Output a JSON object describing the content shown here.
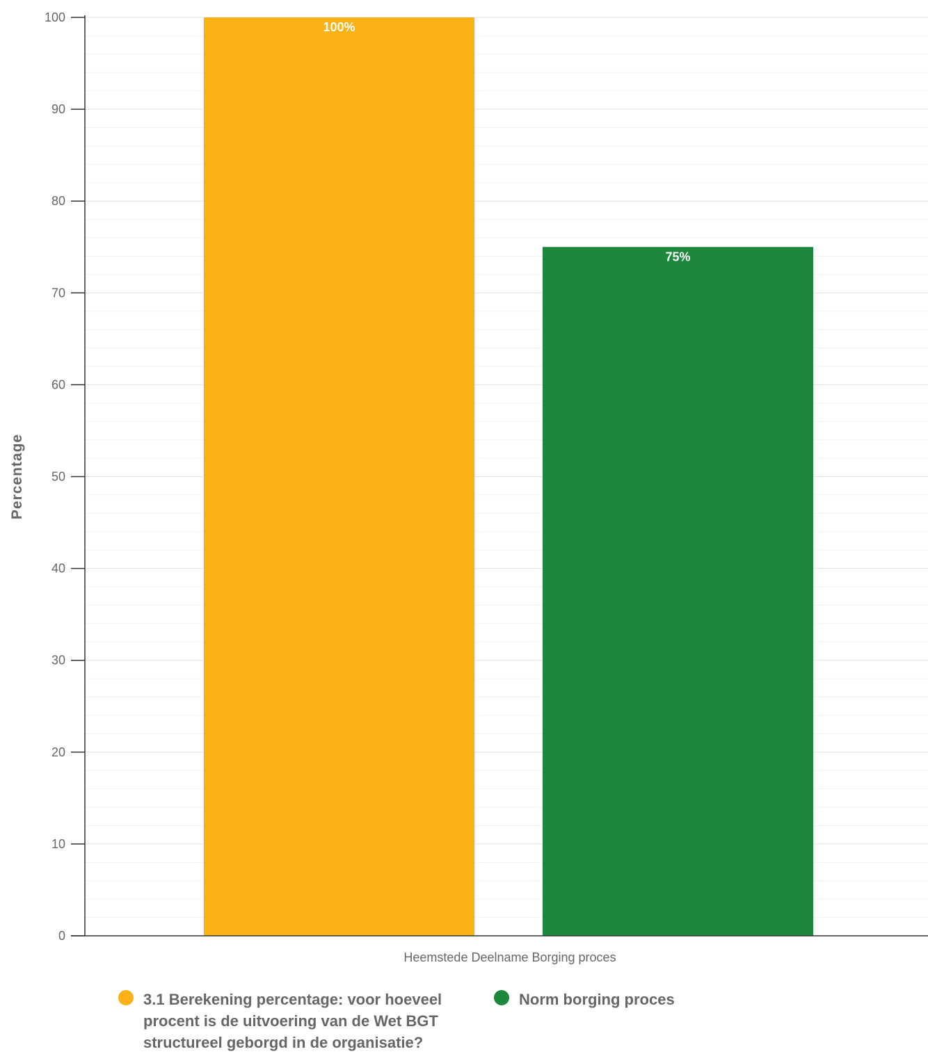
{
  "chart_data": {
    "type": "bar",
    "categories": [
      "Heemstede Deelname Borging proces"
    ],
    "series": [
      {
        "name": "3.1 Berekening percentage: voor hoeveel procent is de uitvoering van de Wet BGT structureel geborgd in de organisatie?",
        "values": [
          100
        ],
        "color": "#FBB016",
        "labels": [
          "100%"
        ]
      },
      {
        "name": "Norm borging proces",
        "values": [
          75
        ],
        "color": "#1D873C",
        "labels": [
          "75%"
        ]
      }
    ],
    "title": "",
    "xlabel": "",
    "ylabel": "Percentage",
    "ylim": [
      0,
      100
    ],
    "yticks": [
      0,
      10,
      20,
      30,
      40,
      50,
      60,
      70,
      80,
      90,
      100
    ],
    "grid": true,
    "minor_grid": true,
    "legend": "bottom"
  },
  "legend": {
    "items": [
      {
        "label": "3.1 Berekening percentage: voor hoeveel procent is de uitvoering van de Wet BGT structureel geborgd in de organisatie?",
        "color": "#FBB016"
      },
      {
        "label": "Norm borging proces",
        "color": "#1D873C"
      }
    ]
  }
}
